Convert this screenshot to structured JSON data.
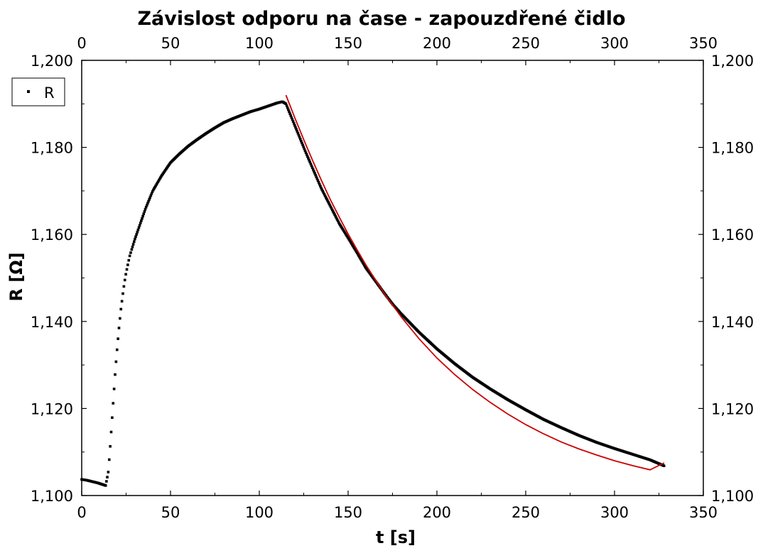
{
  "chart_data": {
    "type": "scatter",
    "title": "Závislost odporu na čase - zapouzdřené čidlo",
    "xlabel": "t [s]",
    "ylabel": "R [Ω]",
    "xlim": [
      0,
      350
    ],
    "ylim": [
      1.1,
      1.2
    ],
    "x_ticks": [
      0,
      50,
      100,
      150,
      200,
      250,
      300,
      350
    ],
    "x_tick_labels": [
      "0",
      "50",
      "100",
      "150",
      "200",
      "250",
      "300",
      "350"
    ],
    "y_ticks": [
      1.1,
      1.12,
      1.14,
      1.16,
      1.18,
      1.2
    ],
    "y_tick_labels": [
      "1,100",
      "1,120",
      "1,140",
      "1,160",
      "1,180",
      "1,200"
    ],
    "mirror_axes": true,
    "grid": false,
    "legend": {
      "position": "top-left",
      "entries": [
        "R"
      ]
    },
    "series": [
      {
        "name": "R",
        "kind": "points",
        "color": "#000000",
        "points": [
          [
            0,
            1.1037
          ],
          [
            3,
            1.1035
          ],
          [
            6,
            1.1032
          ],
          [
            9,
            1.1029
          ],
          [
            12,
            1.1025
          ],
          [
            13.5,
            1.1023
          ],
          [
            15,
            1.1055
          ],
          [
            16,
            1.111
          ],
          [
            17,
            1.117
          ],
          [
            18,
            1.123
          ],
          [
            19,
            1.129
          ],
          [
            20,
            1.134
          ],
          [
            21,
            1.1385
          ],
          [
            22,
            1.1425
          ],
          [
            23,
            1.1458
          ],
          [
            24,
            1.1488
          ],
          [
            25,
            1.1512
          ],
          [
            27,
            1.155
          ],
          [
            30,
            1.159
          ],
          [
            33,
            1.1625
          ],
          [
            36,
            1.166
          ],
          [
            40,
            1.17
          ],
          [
            45,
            1.1735
          ],
          [
            50,
            1.1765
          ],
          [
            55,
            1.1785
          ],
          [
            60,
            1.1803
          ],
          [
            65,
            1.1818
          ],
          [
            70,
            1.1832
          ],
          [
            75,
            1.1845
          ],
          [
            80,
            1.1857
          ],
          [
            85,
            1.1866
          ],
          [
            90,
            1.1874
          ],
          [
            95,
            1.1882
          ],
          [
            100,
            1.1888
          ],
          [
            105,
            1.1895
          ],
          [
            110,
            1.1902
          ],
          [
            113,
            1.1905
          ],
          [
            115,
            1.19
          ],
          [
            118,
            1.187
          ],
          [
            122,
            1.183
          ],
          [
            126,
            1.179
          ],
          [
            130,
            1.1752
          ],
          [
            135,
            1.1705
          ],
          [
            140,
            1.1665
          ],
          [
            145,
            1.1625
          ],
          [
            150,
            1.1592
          ],
          [
            155,
            1.1558
          ],
          [
            160,
            1.1523
          ],
          [
            165,
            1.1495
          ],
          [
            170,
            1.1467
          ],
          [
            175,
            1.144
          ],
          [
            180,
            1.1417
          ],
          [
            190,
            1.1375
          ],
          [
            200,
            1.1337
          ],
          [
            210,
            1.1303
          ],
          [
            220,
            1.1272
          ],
          [
            230,
            1.1245
          ],
          [
            240,
            1.122
          ],
          [
            250,
            1.1197
          ],
          [
            260,
            1.1175
          ],
          [
            270,
            1.1156
          ],
          [
            280,
            1.1138
          ],
          [
            290,
            1.1122
          ],
          [
            300,
            1.1108
          ],
          [
            310,
            1.1095
          ],
          [
            320,
            1.1082
          ],
          [
            328,
            1.1068
          ]
        ]
      },
      {
        "kind": "line",
        "color": "#cc0000",
        "points": [
          [
            115,
            1.192
          ],
          [
            120,
            1.1868
          ],
          [
            125,
            1.1818
          ],
          [
            130,
            1.177
          ],
          [
            135,
            1.1724
          ],
          [
            140,
            1.168
          ],
          [
            145,
            1.164
          ],
          [
            150,
            1.1601
          ],
          [
            155,
            1.1565
          ],
          [
            160,
            1.153
          ],
          [
            170,
            1.1466
          ],
          [
            180,
            1.141
          ],
          [
            190,
            1.136
          ],
          [
            200,
            1.1316
          ],
          [
            210,
            1.1278
          ],
          [
            220,
            1.1244
          ],
          [
            230,
            1.1214
          ],
          [
            240,
            1.1187
          ],
          [
            250,
            1.1163
          ],
          [
            260,
            1.1142
          ],
          [
            270,
            1.1123
          ],
          [
            280,
            1.1107
          ],
          [
            290,
            1.1093
          ],
          [
            300,
            1.108
          ],
          [
            310,
            1.1069
          ],
          [
            320,
            1.1059
          ],
          [
            328,
            1.1075
          ]
        ]
      }
    ]
  }
}
